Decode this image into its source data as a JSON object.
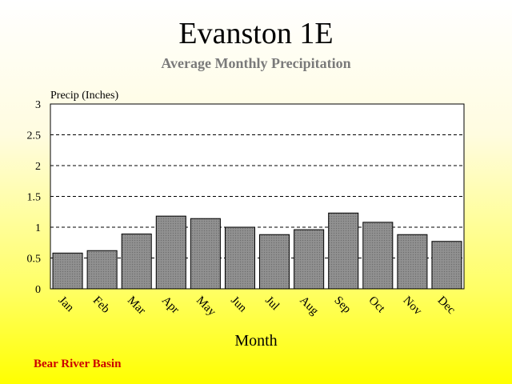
{
  "chart_data": {
    "type": "bar",
    "title": "Evanston 1E",
    "subtitle": "Average Monthly Precipitation",
    "ylabel": "Precip (Inches)",
    "xlabel": "Month",
    "categories": [
      "Jan",
      "Feb",
      "Mar",
      "Apr",
      "May",
      "Jun",
      "Jul",
      "Aug",
      "Sep",
      "Oct",
      "Nov",
      "Dec"
    ],
    "values": [
      0.58,
      0.62,
      0.89,
      1.18,
      1.14,
      1.0,
      0.88,
      0.96,
      1.23,
      1.08,
      0.88,
      0.77
    ],
    "ylim": [
      0,
      3
    ],
    "yticks": [
      "0",
      "0.5",
      "1",
      "1.5",
      "2",
      "2.5",
      "3"
    ],
    "grid": "horizontal dashed",
    "colors": {
      "bar": "#8a8a8a",
      "bar_stroke": "#000000",
      "plot_bg": "#ffffff",
      "subtitle": "#7a7a7a",
      "footnote": "#cc0000"
    }
  },
  "footnote": "Bear River Basin"
}
